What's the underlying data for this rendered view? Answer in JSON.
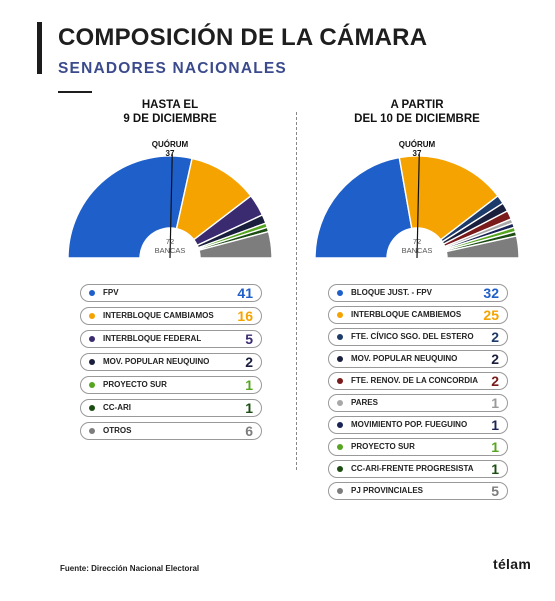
{
  "title": "COMPOSICIÓN DE LA CÁMARA",
  "subtitle": "SENADORES NACIONALES",
  "source": "Fuente: Dirección Nacional Electoral",
  "logo": "télam",
  "chart_data": [
    {
      "type": "pie",
      "heading": [
        "HASTA EL",
        "9 DE DICIEMBRE"
      ],
      "quorum_label": "QUÓRUM",
      "quorum_value": "37",
      "center_value": "72",
      "center_label": "BANCAS",
      "total": 72,
      "categories": [
        "FPV",
        "INTERBLOQUE CAMBIAMOS",
        "INTERBLOQUE FEDERAL",
        "MOV. POPULAR NEUQUINO",
        "PROYECTO SUR",
        "CC-ARI",
        "OTROS"
      ],
      "values": [
        41,
        16,
        5,
        2,
        1,
        1,
        6
      ],
      "colors": [
        "#1f5fc9",
        "#f5a300",
        "#3a2a70",
        "#1a1f3d",
        "#56a520",
        "#1b4d12",
        "#7d7d7d"
      ],
      "value_colors": [
        "#1f5fc9",
        "#f5a300",
        "#3a2a70",
        "#1a1f3d",
        "#56a520",
        "#1b4d12",
        "#7d7d7d"
      ]
    },
    {
      "type": "pie",
      "heading": [
        "A PARTIR",
        "DEL 10 DE DICIEMBRE"
      ],
      "quorum_label": "QUÓRUM",
      "quorum_value": "37",
      "center_value": "72",
      "center_label": "BANCAS",
      "total": 72,
      "categories": [
        "BLOQUE JUST. - FPV",
        "INTERBLOQUE CAMBIEMOS",
        "FTE. CÍVICO SGO. DEL ESTERO",
        "MOV. POPULAR NEUQUINO",
        "FTE. RENOV. DE LA CONCORDIA",
        "PARES",
        "MOVIMIENTO POP. FUEGUINO",
        "PROYECTO SUR",
        "CC-ARI-FRENTE PROGRESISTA",
        "PJ PROVINCIALES"
      ],
      "values": [
        32,
        25,
        2,
        2,
        2,
        1,
        1,
        1,
        1,
        5
      ],
      "colors": [
        "#1f5fc9",
        "#f5a300",
        "#1c3a6a",
        "#1a1f3d",
        "#7a1a1a",
        "#a8a8a8",
        "#1a2355",
        "#56a520",
        "#1b4d12",
        "#7d7d7d"
      ],
      "value_colors": [
        "#1f5fc9",
        "#f5a300",
        "#1c3a6a",
        "#1a1f3d",
        "#7a1a1a",
        "#9a9a9a",
        "#1a2355",
        "#56a520",
        "#1b4d12",
        "#7d7d7d"
      ]
    }
  ]
}
